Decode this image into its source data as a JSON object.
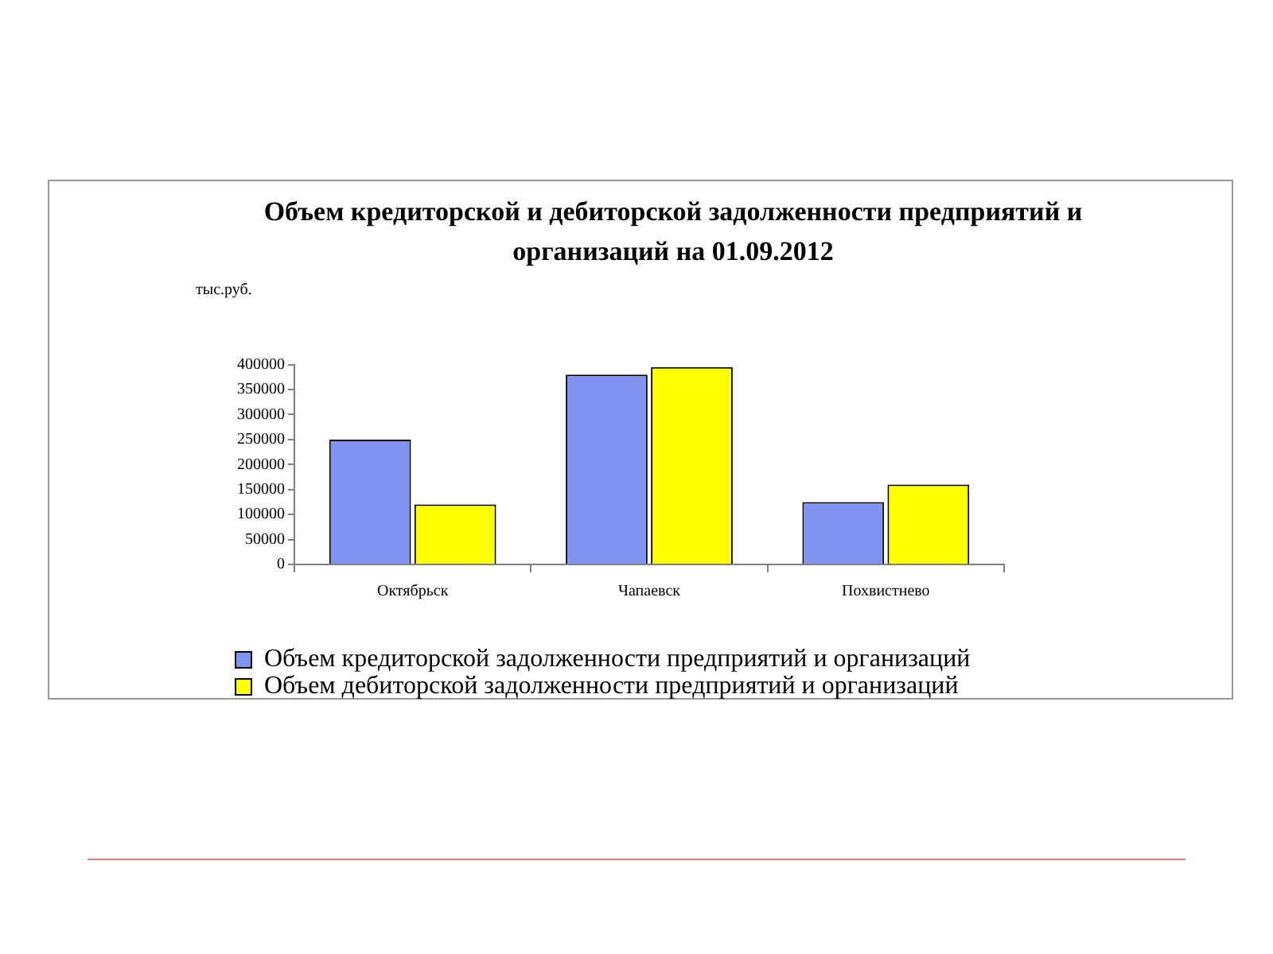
{
  "chart_data": {
    "type": "bar",
    "title": "Объем кредиторской и дебиторской задолженности предприятий и организаций на 01.09.2012",
    "ylabel": "тыс.руб.",
    "categories": [
      "Октябрьск",
      "Чапаевск",
      "Похвистнево"
    ],
    "series": [
      {
        "name": "Объем кредиторской задолженности предприятий и организаций",
        "color": "#8093f0",
        "values": [
          250000,
          380000,
          125000
        ]
      },
      {
        "name": "Объем дебиторской задолженности предприятий и организаций",
        "color": "#ffff00",
        "values": [
          120000,
          395000,
          160000
        ]
      }
    ],
    "ylim": [
      0,
      400000
    ],
    "yticks": [
      0,
      50000,
      100000,
      150000,
      200000,
      250000,
      300000,
      350000,
      400000
    ],
    "legend": "bottom"
  }
}
